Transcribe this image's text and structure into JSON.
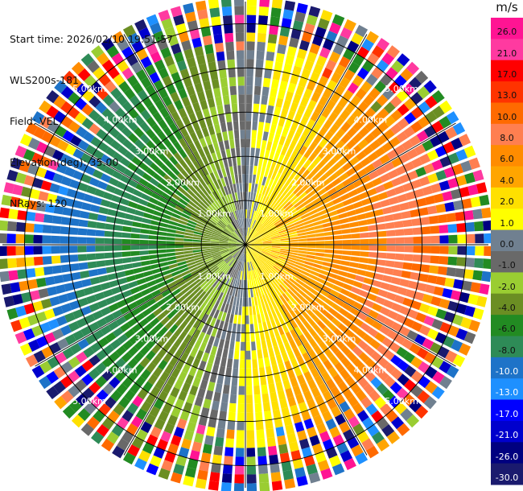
{
  "header": {
    "start_time": "Start time: 2026/02/10 19:51:57",
    "instrument": "WLS200s-181",
    "field": "Field: VEL",
    "elevation": "Elevation(deg): 35.00",
    "nrays": "NRays: 120"
  },
  "colorbar": {
    "unit": "m/s",
    "labels": [
      "26.0",
      "21.0",
      "17.0",
      "13.0",
      "10.0",
      "8.0",
      "6.0",
      "4.0",
      "2.0",
      "1.0",
      "0.0",
      "-1.0",
      "-2.0",
      "-4.0",
      "-6.0",
      "-8.0",
      "-10.0",
      "-13.0",
      "-17.0",
      "-21.0",
      "-26.0",
      "-30.0"
    ],
    "colors": [
      "#ff1493",
      "#ff3aa0",
      "#ff0000",
      "#ff3300",
      "#ff6a00",
      "#ff7f50",
      "#ff8c00",
      "#ffa500",
      "#ffe000",
      "#ffff00",
      "#708090",
      "#696969",
      "#9acd32",
      "#6b8e23",
      "#228b22",
      "#2e8b57",
      "#1e73c8",
      "#1e90ff",
      "#0000ff",
      "#0000cd",
      "#000080",
      "#1a1a6e"
    ]
  },
  "chart_data": {
    "type": "heatmap",
    "projection": "polar (PPI)",
    "field": "VEL",
    "nrays": 120,
    "max_range_km": 5.5,
    "range_rings_km": [
      1,
      2,
      3,
      4,
      5
    ],
    "ring_labels": [
      "1.00km",
      "2.00km",
      "3.00km",
      "4.00km",
      "5.00km"
    ],
    "azimuth_spokes_deg": [
      0,
      30,
      60,
      90,
      120,
      150,
      180,
      210,
      240,
      270,
      300,
      330
    ],
    "value_pattern": {
      "east_sector": "positive 4 to 10 m/s, increasing with range",
      "west_sector": "negative -2 to -10 m/s, increasing magnitude with range",
      "north_south_transition": "near 0 to 2 m/s",
      "beyond_about_5km": "noisy, full color range"
    }
  }
}
